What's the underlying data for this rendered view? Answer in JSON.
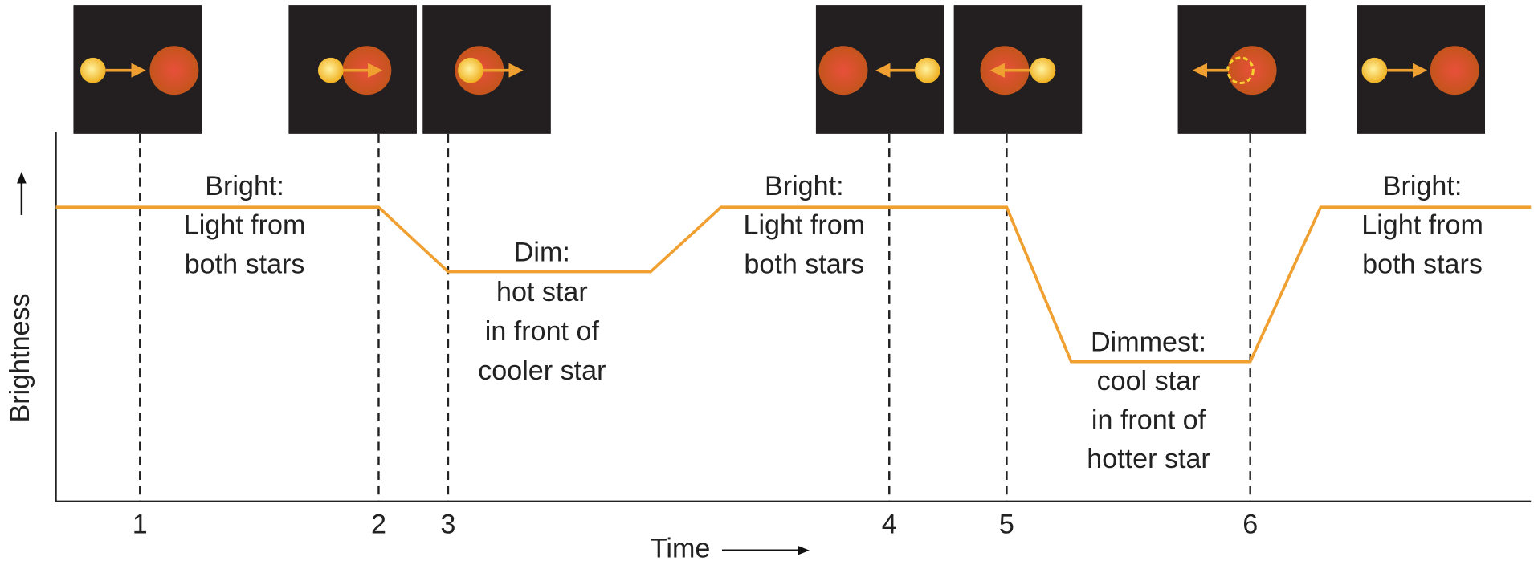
{
  "axes": {
    "y_label": "Brightness",
    "x_label": "Time"
  },
  "markers": [
    "1",
    "2",
    "3",
    "4",
    "5",
    "6"
  ],
  "phases": [
    {
      "lines": [
        "Bright:",
        "Light from",
        "both stars"
      ]
    },
    {
      "lines": [
        "Dim:",
        "hot star",
        "in front of",
        "cooler star"
      ]
    },
    {
      "lines": [
        "Bright:",
        "Light from",
        "both stars"
      ]
    },
    {
      "lines": [
        "Dimmest:",
        "cool star",
        "in front of",
        "hotter star"
      ]
    },
    {
      "lines": [
        "Bright:",
        "Light from",
        "both stars"
      ]
    }
  ]
}
